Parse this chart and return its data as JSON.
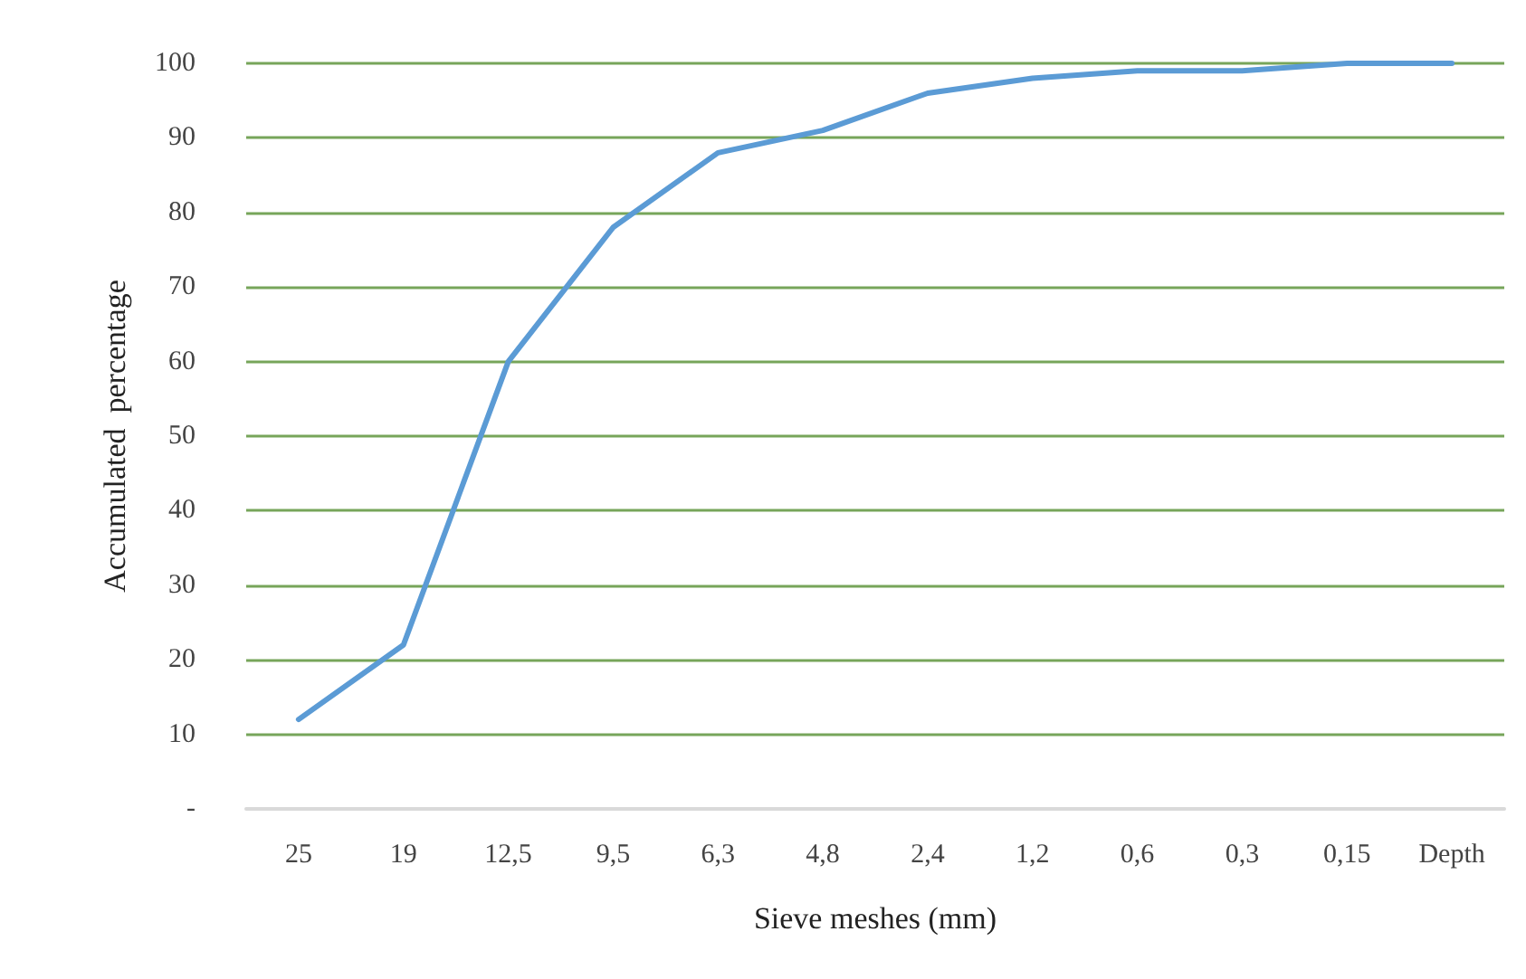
{
  "chart_data": {
    "type": "line",
    "xlabel": "Sieve meshes (mm)",
    "ylabel": "Accumulated  percentage",
    "categories": [
      "25",
      "19",
      "12,5",
      "9,5",
      "6,3",
      "4,8",
      "2,4",
      "1,2",
      "0,6",
      "0,3",
      "0,15",
      "Depth"
    ],
    "series": [
      {
        "color": "#5b9bd5",
        "values": [
          12,
          22,
          60,
          78,
          88,
          91,
          96,
          98,
          99,
          99,
          100,
          100
        ]
      }
    ],
    "ylim": [
      0,
      100
    ],
    "yticks": [
      {
        "value": 0,
        "label": "-"
      },
      10,
      20,
      30,
      40,
      50,
      60,
      70,
      80,
      90,
      100
    ],
    "grid": "y",
    "marker": "none",
    "line_style": "solid"
  }
}
